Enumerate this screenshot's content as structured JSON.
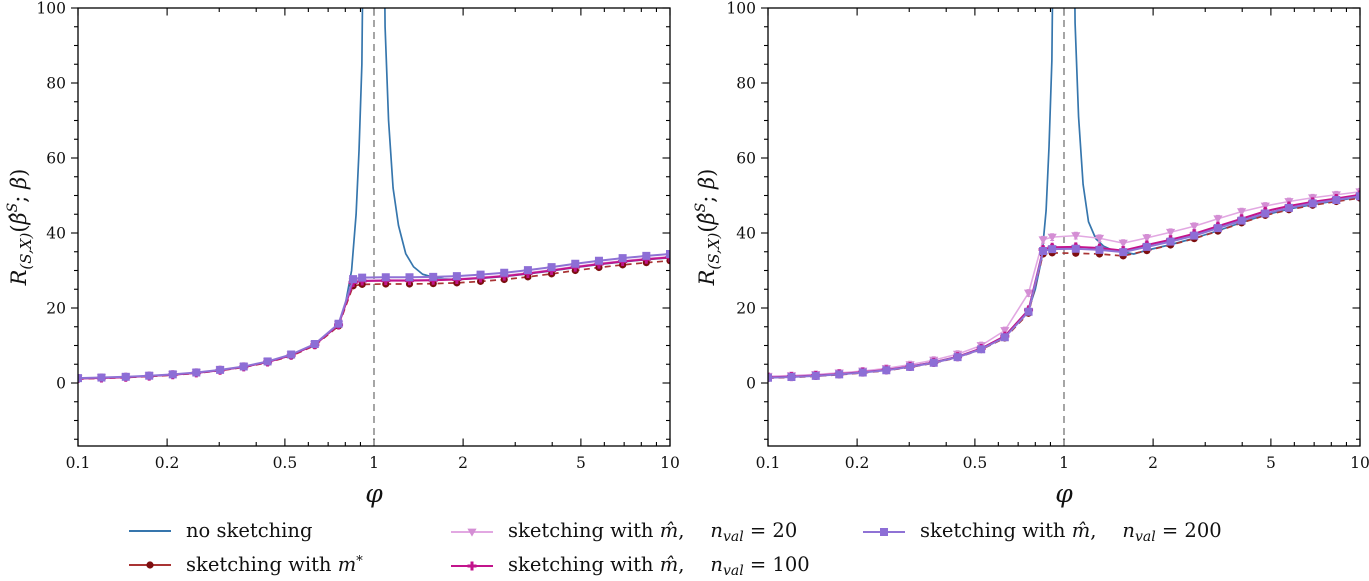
{
  "figure": {
    "xlabel": "φ",
    "ylabel": "R(S,X)(β̂S; β)",
    "ylabel_parts": [
      {
        "t": "R",
        "i": true
      },
      {
        "t": "(S,X)",
        "sub": true,
        "i": true
      },
      {
        "t": "(",
        "i": false
      },
      {
        "t": "β̂",
        "i": true
      },
      {
        "t": "S",
        "sup": true,
        "i": true
      },
      {
        "t": "; ",
        "i": false
      },
      {
        "t": "β",
        "i": true
      },
      {
        "t": ")",
        "i": false
      }
    ],
    "x_tick_labels": [
      "0.1",
      "0.2",
      "0.5",
      "1",
      "2",
      "5",
      "10"
    ],
    "x_tick_values": [
      0.1,
      0.2,
      0.5,
      1,
      2,
      5,
      10
    ],
    "x_minor_ticks": [
      0.3,
      0.4,
      0.6,
      0.7,
      0.8,
      0.9,
      3,
      4,
      6,
      7,
      8,
      9
    ],
    "y_tick_labels": [
      "0",
      "20",
      "40",
      "60",
      "80",
      "100"
    ],
    "y_tick_values": [
      0,
      20,
      40,
      60,
      80,
      100
    ],
    "y_minor_step": 5,
    "vline_x": 1,
    "colors": {
      "blue": "#3676ad",
      "darkred_line": "#a93434",
      "darkred_marker": "#7d0e10",
      "pink_line": "#e2a8e2",
      "pink_marker": "#d48ed4",
      "magenta": "#c2148c",
      "purple_line": "#8f72d5",
      "purple_marker": "#8d6ed6",
      "vline": "#8f8f8f",
      "axis": "#000000",
      "text": "#111111"
    }
  },
  "chart_data": [
    {
      "type": "line",
      "panel": "left",
      "xscale": "log",
      "xlim": [
        0.1,
        10
      ],
      "ylim": [
        -16.8,
        100
      ],
      "xlabel": "φ",
      "ylabel": "R(S,X)(β̂S; β)",
      "vline": 1,
      "x": [
        0.1,
        0.12,
        0.145,
        0.174,
        0.209,
        0.251,
        0.302,
        0.363,
        0.437,
        0.525,
        0.631,
        0.759,
        0.85,
        0.912,
        1.096,
        1.318,
        1.585,
        1.905,
        2.291,
        2.754,
        3.311,
        3.981,
        4.786,
        5.754,
        6.918,
        8.318,
        10
      ],
      "series": [
        {
          "name": "no sketching",
          "color": "#3676ad",
          "marker": "none",
          "line": "solid",
          "width": 1.7,
          "x": [
            0.1,
            0.12,
            0.145,
            0.174,
            0.209,
            0.251,
            0.302,
            0.363,
            0.437,
            0.525,
            0.631,
            0.759,
            0.8,
            0.84,
            0.87,
            0.89,
            0.91,
            0.93,
            1.07,
            1.09,
            1.12,
            1.16,
            1.21,
            1.28,
            1.36,
            1.46,
            1.585,
            1.72,
            1.905,
            2.291,
            2.754,
            3.311,
            3.981,
            4.786,
            5.754,
            6.918,
            8.318,
            10
          ],
          "y": [
            1.2,
            1.35,
            1.55,
            1.85,
            2.2,
            2.7,
            3.4,
            4.3,
            5.6,
            7.4,
            10.2,
            15.5,
            21,
            30,
            45,
            62,
            85,
            160,
            160,
            95,
            70,
            52,
            42,
            34.5,
            31,
            29,
            28.2,
            27.8,
            27.6,
            27.9,
            28.4,
            29.1,
            29.9,
            30.8,
            31.6,
            32.3,
            32.9,
            33.4
          ]
        },
        {
          "name": "sketching with m*",
          "color": "#a93434",
          "marker_color": "#7d0e10",
          "marker": "circle",
          "line": "dashed",
          "width": 1.7,
          "err": 0.35,
          "y": [
            1.1,
            1.25,
            1.45,
            1.75,
            2.1,
            2.6,
            3.3,
            4.2,
            5.45,
            7.2,
            10.0,
            15.2,
            25.9,
            26.3,
            26.4,
            26.4,
            26.5,
            26.7,
            27.1,
            27.6,
            28.3,
            29.1,
            30.0,
            30.8,
            31.5,
            32.1,
            32.6
          ]
        },
        {
          "name": "sketching with m̂, n_val = 20",
          "color": "#e2a8e2",
          "marker_color": "#d48ed4",
          "marker": "triangle-down",
          "line": "solid",
          "width": 1.6,
          "err": 0.3,
          "y": [
            1.25,
            1.4,
            1.6,
            1.9,
            2.25,
            2.75,
            3.45,
            4.35,
            5.65,
            7.5,
            10.3,
            15.6,
            27.0,
            27.4,
            27.5,
            27.5,
            27.6,
            27.8,
            28.2,
            28.7,
            29.4,
            30.2,
            31.1,
            31.9,
            32.6,
            33.2,
            33.7
          ]
        },
        {
          "name": "sketching with m̂, n_val = 100",
          "color": "#c2148c",
          "marker_color": "#c2148c",
          "marker": "plus",
          "line": "solid",
          "width": 2,
          "err": 0.3,
          "y": [
            1.2,
            1.35,
            1.55,
            1.85,
            2.2,
            2.7,
            3.4,
            4.3,
            5.6,
            7.4,
            10.2,
            15.5,
            26.8,
            27.2,
            27.3,
            27.3,
            27.4,
            27.6,
            28.0,
            28.5,
            29.2,
            30.0,
            30.9,
            31.7,
            32.4,
            33.0,
            33.5
          ]
        },
        {
          "name": "sketching with m̂, n_val = 200",
          "color": "#8f72d5",
          "marker_color": "#8d6ed6",
          "marker": "square",
          "line": "solid",
          "width": 2,
          "err": 0.3,
          "y": [
            1.3,
            1.45,
            1.65,
            1.95,
            2.3,
            2.8,
            3.5,
            4.4,
            5.75,
            7.6,
            10.4,
            15.8,
            27.7,
            28.1,
            28.2,
            28.2,
            28.3,
            28.5,
            28.9,
            29.4,
            30.1,
            30.9,
            31.8,
            32.6,
            33.3,
            33.9,
            34.4
          ]
        }
      ]
    },
    {
      "type": "line",
      "panel": "right",
      "xscale": "log",
      "xlim": [
        0.1,
        10
      ],
      "ylim": [
        -16.8,
        100
      ],
      "xlabel": "φ",
      "ylabel": "R(S,X)(β̂S; β)",
      "vline": 1,
      "x": [
        0.1,
        0.12,
        0.145,
        0.174,
        0.209,
        0.251,
        0.302,
        0.363,
        0.437,
        0.525,
        0.631,
        0.759,
        0.85,
        0.912,
        1.096,
        1.318,
        1.585,
        1.905,
        2.291,
        2.754,
        3.311,
        3.981,
        4.786,
        5.754,
        6.918,
        8.318,
        10
      ],
      "series": [
        {
          "name": "no sketching",
          "color": "#3676ad",
          "marker": "none",
          "line": "solid",
          "width": 1.7,
          "x": [
            0.1,
            0.12,
            0.145,
            0.174,
            0.209,
            0.251,
            0.302,
            0.363,
            0.437,
            0.525,
            0.631,
            0.759,
            0.8,
            0.84,
            0.87,
            0.89,
            0.91,
            0.93,
            1.07,
            1.09,
            1.12,
            1.16,
            1.21,
            1.28,
            1.36,
            1.46,
            1.585,
            1.72,
            1.905,
            2.291,
            2.754,
            3.311,
            3.981,
            4.786,
            5.754,
            6.918,
            8.318,
            10
          ],
          "y": [
            1.5,
            1.7,
            2.0,
            2.4,
            2.9,
            3.5,
            4.4,
            5.5,
            7.0,
            9.2,
            12.5,
            19.5,
            25,
            33,
            46,
            63,
            86,
            160,
            160,
            96,
            71,
            53,
            43,
            38.5,
            36.5,
            35.4,
            34.9,
            34.4,
            35.4,
            36.9,
            38.6,
            40.6,
            42.8,
            44.8,
            46.4,
            47.6,
            48.6,
            49.6
          ]
        },
        {
          "name": "sketching with m*",
          "color": "#a93434",
          "marker_color": "#7d0e10",
          "marker": "circle",
          "line": "dashed",
          "width": 1.7,
          "err": 0.6,
          "y": [
            1.3,
            1.5,
            1.8,
            2.2,
            2.7,
            3.3,
            4.2,
            5.3,
            6.8,
            8.9,
            12.0,
            18.6,
            34.4,
            34.7,
            34.6,
            34.4,
            33.9,
            35.3,
            36.8,
            38.5,
            40.5,
            42.7,
            44.7,
            46.2,
            47.4,
            48.4,
            49.3
          ]
        },
        {
          "name": "sketching with m̂, n_val = 20",
          "color": "#e2a8e2",
          "marker_color": "#d48ed4",
          "marker": "triangle-down",
          "line": "solid",
          "width": 1.6,
          "err": 0.9,
          "y": [
            1.8,
            2.0,
            2.3,
            2.7,
            3.2,
            3.9,
            4.9,
            6.1,
            7.7,
            10.0,
            14.0,
            24.0,
            38.2,
            38.9,
            39.3,
            38.6,
            37.3,
            38.7,
            40.2,
            41.8,
            43.8,
            45.7,
            47.2,
            48.4,
            49.4,
            50.2,
            51.0
          ]
        },
        {
          "name": "sketching with m̂, n_val = 100",
          "color": "#c2148c",
          "marker_color": "#c2148c",
          "marker": "plus",
          "line": "solid",
          "width": 2,
          "err": 0.7,
          "y": [
            1.5,
            1.7,
            2.0,
            2.4,
            2.9,
            3.5,
            4.4,
            5.5,
            7.0,
            9.2,
            12.5,
            19.5,
            35.6,
            36.2,
            36.3,
            36.0,
            35.3,
            36.8,
            38.2,
            39.8,
            41.8,
            43.8,
            45.8,
            47.2,
            48.3,
            49.2,
            50.2
          ]
        },
        {
          "name": "sketching with m̂, n_val = 200",
          "color": "#8f72d5",
          "marker_color": "#8d6ed6",
          "marker": "square",
          "line": "solid",
          "width": 2,
          "err": 0.6,
          "y": [
            1.4,
            1.6,
            1.9,
            2.3,
            2.8,
            3.4,
            4.3,
            5.4,
            6.9,
            9.0,
            12.2,
            19.0,
            35.2,
            35.7,
            35.8,
            35.5,
            34.9,
            36.3,
            37.7,
            39.3,
            41.3,
            43.3,
            45.2,
            46.7,
            47.9,
            48.8,
            49.8
          ]
        }
      ]
    }
  ],
  "legend": {
    "items": [
      {
        "label": "no sketching",
        "color": "#3676ad",
        "marker": "none",
        "parts": [
          {
            "t": "no sketching"
          }
        ]
      },
      {
        "label": "sketching with m*",
        "color": "#a93434",
        "marker": "circle",
        "marker_color": "#7d0e10",
        "parts": [
          {
            "t": "sketching with "
          },
          {
            "t": "m",
            "i": true
          },
          {
            "t": "*",
            "sup": true
          }
        ]
      },
      {
        "label": "sketching with m̂, n_val = 20",
        "color": "#e2a8e2",
        "marker": "triangle-down",
        "marker_color": "#d48ed4",
        "parts": [
          {
            "t": "sketching with "
          },
          {
            "t": "m̂",
            "i": true
          },
          {
            "t": ","
          },
          {
            "gap": true
          },
          {
            "t": "n",
            "i": true
          },
          {
            "t": "val",
            "sub": true
          },
          {
            "t": " = 20"
          }
        ]
      },
      {
        "label": "sketching with m̂, n_val = 100",
        "color": "#c2148c",
        "marker": "plus",
        "marker_color": "#c2148c",
        "parts": [
          {
            "t": "sketching with "
          },
          {
            "t": "m̂",
            "i": true
          },
          {
            "t": ","
          },
          {
            "gap": true
          },
          {
            "t": "n",
            "i": true
          },
          {
            "t": "val",
            "sub": true
          },
          {
            "t": " = 100"
          }
        ]
      },
      {
        "label": "sketching with m̂, n_val = 200",
        "color": "#8f72d5",
        "marker": "square",
        "marker_color": "#8d6ed6",
        "parts": [
          {
            "t": "sketching with "
          },
          {
            "t": "m̂",
            "i": true
          },
          {
            "t": ","
          },
          {
            "gap": true
          },
          {
            "t": "n",
            "i": true
          },
          {
            "t": "val",
            "sub": true
          },
          {
            "t": " = 200"
          }
        ]
      }
    ]
  }
}
